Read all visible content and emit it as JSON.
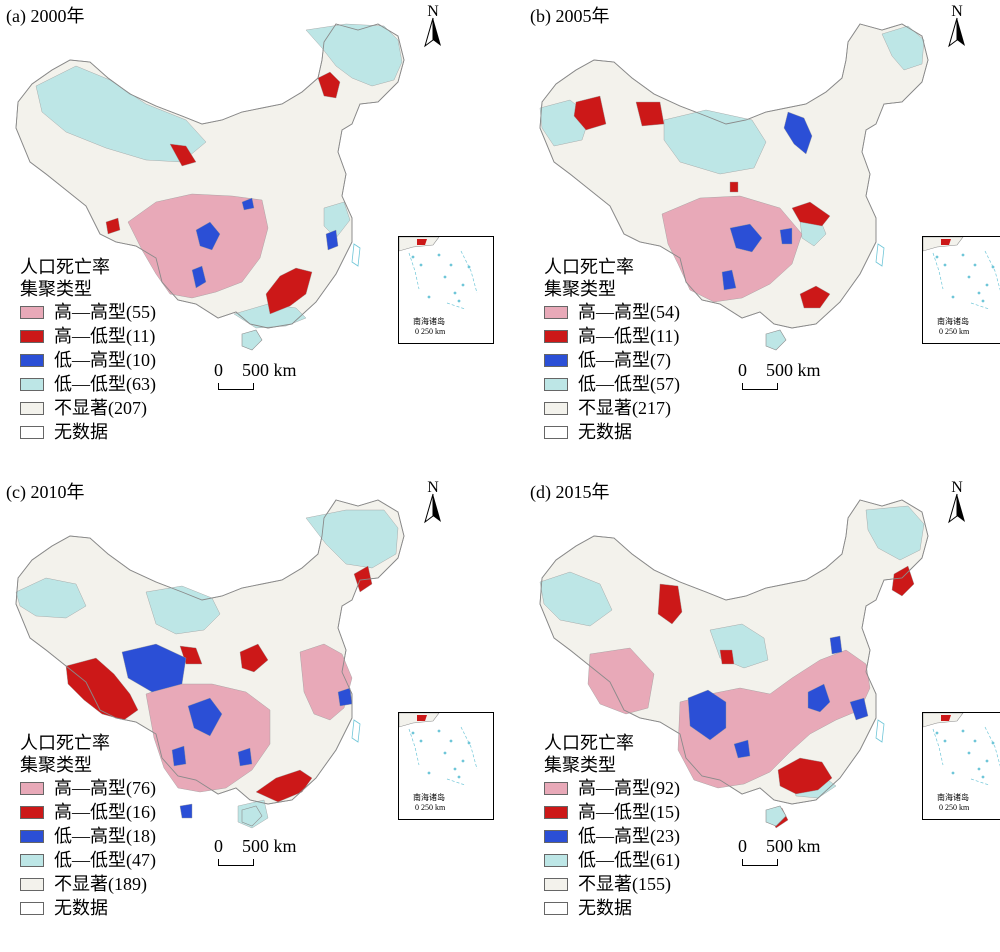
{
  "legend_title": [
    "人口死亡率",
    "集聚类型"
  ],
  "colors": {
    "hh": "#e8a9b8",
    "hl": "#cc1818",
    "lh": "#2b4fd6",
    "ll": "#bde6e6",
    "ns": "#f3f2ec",
    "nd": "#ffffff",
    "border": "#8c8c8c",
    "water": "#6fc6d8"
  },
  "north_label": "N",
  "scale": {
    "zero": "0",
    "dist": "500 km"
  },
  "inset": {
    "label": "南海诸岛",
    "scale": "0  250 km"
  },
  "panels": [
    {
      "title": "(a) 2000年",
      "legend": [
        {
          "key": "hh",
          "label": "高—高型(55)"
        },
        {
          "key": "hl",
          "label": "高—低型(11)"
        },
        {
          "key": "lh",
          "label": "低—高型(10)"
        },
        {
          "key": "ll",
          "label": "低—低型(63)"
        },
        {
          "key": "ns",
          "label": "不显著(207)"
        },
        {
          "key": "nd",
          "label": "无数据"
        }
      ]
    },
    {
      "title": "(b) 2005年",
      "legend": [
        {
          "key": "hh",
          "label": "高—高型(54)"
        },
        {
          "key": "hl",
          "label": "高—低型(11)"
        },
        {
          "key": "lh",
          "label": "低—高型(7)"
        },
        {
          "key": "ll",
          "label": "低—低型(57)"
        },
        {
          "key": "ns",
          "label": "不显著(217)"
        },
        {
          "key": "nd",
          "label": "无数据"
        }
      ]
    },
    {
      "title": "(c) 2010年",
      "legend": [
        {
          "key": "hh",
          "label": "高—高型(76)"
        },
        {
          "key": "hl",
          "label": "高—低型(16)"
        },
        {
          "key": "lh",
          "label": "低—高型(18)"
        },
        {
          "key": "ll",
          "label": "低—低型(47)"
        },
        {
          "key": "ns",
          "label": "不显著(189)"
        },
        {
          "key": "nd",
          "label": "无数据"
        }
      ]
    },
    {
      "title": "(d) 2015年",
      "legend": [
        {
          "key": "hh",
          "label": "高—高型(92)"
        },
        {
          "key": "hl",
          "label": "高—低型(15)"
        },
        {
          "key": "lh",
          "label": "低—高型(23)"
        },
        {
          "key": "ll",
          "label": "低—低型(61)"
        },
        {
          "key": "ns",
          "label": "不显著(155)"
        },
        {
          "key": "nd",
          "label": "无数据"
        }
      ]
    }
  ]
}
